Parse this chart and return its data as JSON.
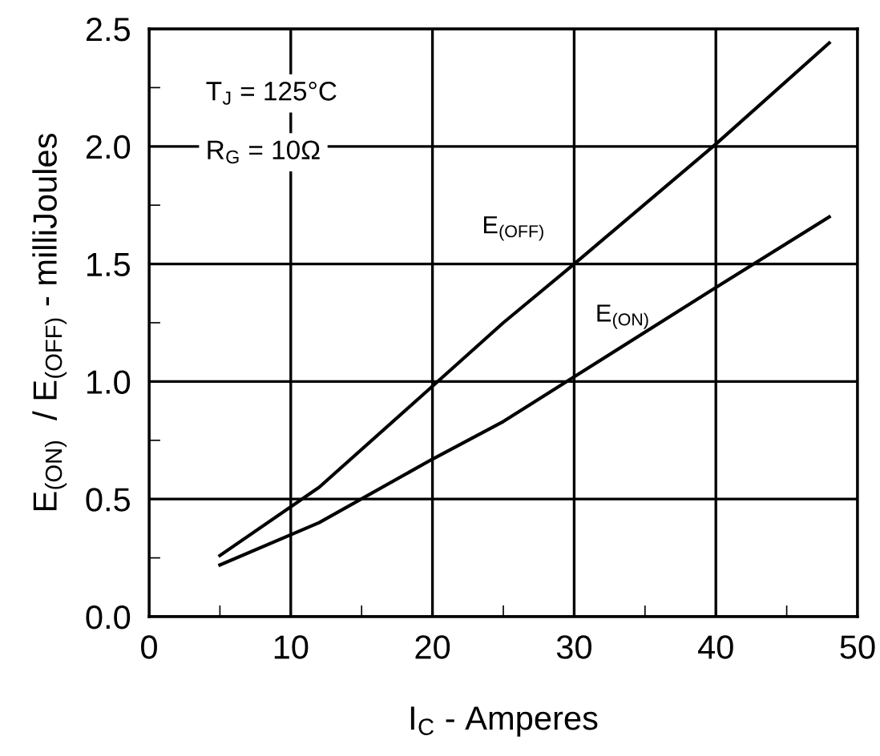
{
  "chart_data": {
    "type": "line",
    "xlabel": "I$_{C}$ - Amperes",
    "ylabel": "E$_{(ON)}$  / E$_{(OFF)}$ - milliJoules",
    "annotations": [
      "T$_{J}$ = 125°C",
      "R$_{G}$ = 10Ω"
    ],
    "series": [
      {
        "name": "E$_{(OFF)}$",
        "color": "#000000",
        "x": [
          5,
          12,
          20,
          25,
          30,
          40,
          48
        ],
        "values": [
          0.26,
          0.55,
          0.98,
          1.25,
          1.5,
          2.01,
          2.44
        ]
      },
      {
        "name": "E$_{(ON)}$",
        "color": "#000000",
        "x": [
          5,
          12,
          20,
          25,
          30,
          40,
          48
        ],
        "values": [
          0.22,
          0.4,
          0.67,
          0.83,
          1.02,
          1.4,
          1.7
        ]
      }
    ],
    "xlim": [
      0,
      50
    ],
    "ylim": [
      0,
      2.5
    ],
    "xticks": [
      0,
      {
        "value": 5,
        "label": null
      },
      10,
      {
        "value": 15,
        "label": null
      },
      20,
      {
        "value": 25,
        "label": null
      },
      30,
      {
        "value": 35,
        "label": null
      },
      40,
      {
        "value": 45,
        "label": null
      },
      50
    ],
    "yticks": [
      {
        "value": 0,
        "label": "0.0"
      },
      {
        "value": 0.25,
        "label": null
      },
      0.5,
      {
        "value": 0.75,
        "label": null
      },
      {
        "value": 1,
        "label": "1.0"
      },
      {
        "value": 1.25,
        "label": null
      },
      1.5,
      {
        "value": 1.75,
        "label": null
      },
      {
        "value": 2,
        "label": "2.0"
      },
      {
        "value": 2.25,
        "label": null
      },
      2.5
    ],
    "grid": true,
    "line_style": "solid",
    "marker": "none",
    "legend": false
  }
}
